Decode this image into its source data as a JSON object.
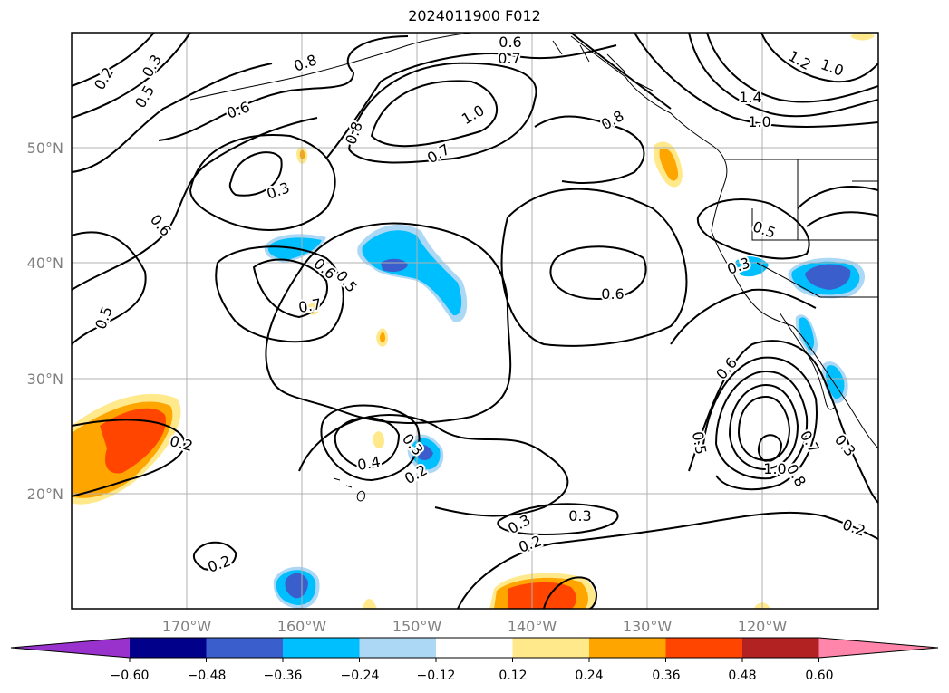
{
  "title": "2024011900 F012",
  "map": {
    "projection": "cylindrical lat/lon",
    "lon_range_deg_east": [
      -180,
      -110
    ],
    "lat_range_deg_north": [
      10,
      60
    ],
    "grid": true,
    "lat_tick_labels": [
      "20°N",
      "30°N",
      "40°N",
      "50°N"
    ],
    "lon_tick_labels": [
      "170°W",
      "160°W",
      "150°W",
      "140°W",
      "130°W",
      "120°W"
    ],
    "coastline_color": "#000000",
    "gridline_color": "#b0b0b0",
    "contour_color": "#000000",
    "contour_labels": [
      "0.2",
      "0.3",
      "0.4",
      "0.5",
      "0.6",
      "0.7",
      "0.8",
      "1.0",
      "1.2",
      "1.4"
    ]
  },
  "colorbar": {
    "orientation": "horizontal",
    "extend": "both",
    "tick_labels": [
      "−0.60",
      "−0.48",
      "−0.36",
      "−0.24",
      "−0.12",
      "0.12",
      "0.24",
      "0.36",
      "0.48",
      "0.60"
    ],
    "colors": [
      "#9932cc",
      "#00008b",
      "#3a5fcd",
      "#00bfff",
      "#add8f5",
      "#ffffff",
      "#ffe98a",
      "#ffa500",
      "#ff4500",
      "#b22222",
      "#ff85aa"
    ]
  }
}
